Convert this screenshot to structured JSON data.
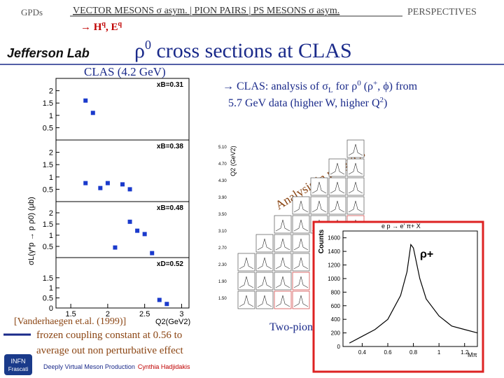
{
  "nav": {
    "left": "GPDs",
    "center": "VECTOR MESONS  σ  asym.  | PION PAIRS | PS MESONS  σ  asym.",
    "right": "PERSPECTIVES",
    "sub": [
      "→ ",
      "H",
      "q",
      ", E",
      "q"
    ]
  },
  "logo": "Jefferson Lab",
  "title": [
    "ρ",
    "0",
    " cross sections at CLAS"
  ],
  "left_plot": {
    "heading": "CLAS (4.2 GeV)",
    "y_label": "σL(γ*p → p ρ0) (μb)",
    "x_label": "Q2(GeV2)",
    "xlim": [
      1.3,
      3.1
    ],
    "xticks": [
      1.5,
      2,
      2.5,
      3
    ],
    "ylim": [
      0,
      2.5
    ],
    "panels": [
      {
        "label": "xB=0.31",
        "yticks": [
          0.5,
          1,
          1.5,
          2
        ],
        "x": [
          1.7,
          1.8
        ],
        "y": [
          1.6,
          1.1
        ]
      },
      {
        "label": "xB=0.38",
        "yticks": [
          0.5,
          1,
          1.5,
          2
        ],
        "x": [
          1.7,
          1.9,
          2.0,
          2.2,
          2.3
        ],
        "y": [
          0.75,
          0.55,
          0.75,
          0.7,
          0.5
        ]
      },
      {
        "label": "xB=0.48",
        "yticks": [
          0.5,
          1,
          1.5,
          2
        ],
        "x": [
          2.1,
          2.3,
          2.4,
          2.5,
          2.6
        ],
        "y": [
          0.45,
          1.6,
          1.2,
          1.05,
          0.2
        ]
      },
      {
        "label": "xD=0.52",
        "yticks": [
          0,
          0.5,
          1,
          1.5
        ],
        "x": [
          2.7,
          2.8
        ],
        "y": [
          0.4,
          0.2
        ]
      }
    ]
  },
  "bullet": [
    "→ CLAS: analysis of σ",
    "L",
    " for ρ",
    "0",
    " (ρ",
    "+",
    ", ϕ) from",
    "5.7 GeV data (higher W, higher Q",
    "2",
    ")"
  ],
  "mid_plot": {
    "y_label": "Q2 (GeV2)",
    "yticks": [
      "5.10",
      "4.70",
      "4.30",
      "3.90",
      "3.50",
      "3.10",
      "2.70",
      "2.30",
      "1.90",
      "1.50"
    ],
    "stamp": "Analysis in progress",
    "caption": "Two-pion"
  },
  "inset": {
    "title": "e p → e' π+ X",
    "y_label": "Counts",
    "x_label": "Mπ",
    "tag": "ρ+",
    "xlim": [
      0.25,
      1.3
    ],
    "xticks": [
      0.4,
      0.6,
      0.8,
      1,
      1.2
    ],
    "ylim": [
      0,
      1700
    ],
    "yticks": [
      0,
      200,
      400,
      600,
      800,
      1000,
      1200,
      1400,
      1600
    ],
    "x": [
      0.3,
      0.4,
      0.5,
      0.6,
      0.7,
      0.75,
      0.78,
      0.8,
      0.85,
      0.9,
      1.0,
      1.1,
      1.2,
      1.3
    ],
    "y": [
      50,
      150,
      250,
      400,
      750,
      1100,
      1500,
      1450,
      1000,
      700,
      450,
      300,
      250,
      200
    ]
  },
  "reference": "[Vanderhaegen et.al. (1999)]",
  "note": [
    "frozen coupling constant at 0.56 to",
    "average out non perturbative effect"
  ],
  "footer": {
    "logo": [
      "INFN",
      "Frascati"
    ],
    "talk": "Deeply Virtual Meson Production",
    "author": "Cynthia Hadjidakis"
  }
}
